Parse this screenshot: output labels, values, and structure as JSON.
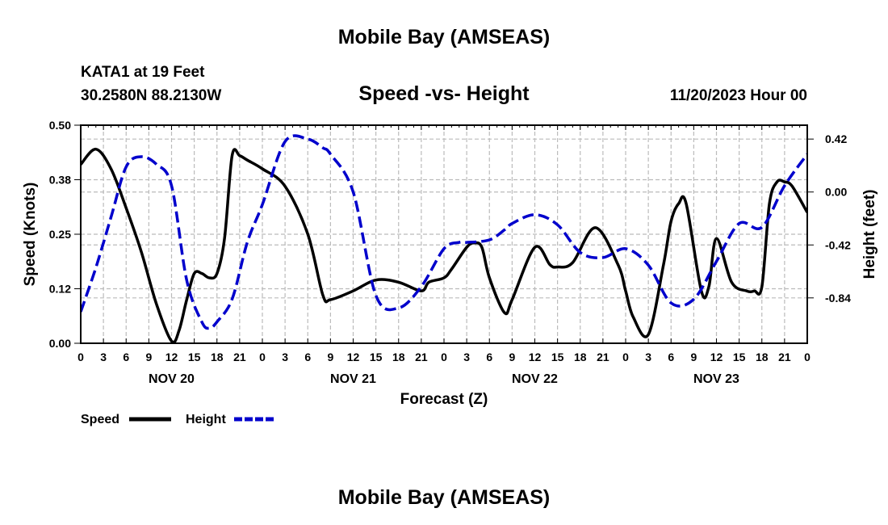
{
  "page": {
    "top_title": "Mobile Bay (AMSEAS)",
    "bottom_title": "Mobile Bay (AMSEAS)",
    "station": "KATA1 at 19 Feet",
    "coords": "30.2580N  88.2130W",
    "datetime": "11/20/2023 Hour 00"
  },
  "colors": {
    "speed": "#000000",
    "height": "#0000cc",
    "grid": "#bbbbbb"
  },
  "chart_data": {
    "type": "line",
    "title": "Speed -vs- Height",
    "xlabel": "Forecast (Z)",
    "ylabel_left": "Speed (Knots)",
    "ylabel_right": "Height (feet)",
    "x_unit": "forecast hour from 11/20/2023 00Z",
    "xlim": [
      0,
      96
    ],
    "ylim_left": [
      0,
      0.5
    ],
    "ylim_right": [
      -1.2,
      0.53
    ],
    "x_tick_values": [
      0,
      3,
      6,
      9,
      12,
      15,
      18,
      21,
      24,
      27,
      30,
      33,
      36,
      39,
      42,
      45,
      48,
      51,
      54,
      57,
      60,
      63,
      66,
      69,
      72,
      75,
      78,
      81,
      84,
      87,
      90,
      93,
      96
    ],
    "x_tick_labels": [
      "0",
      "3",
      "6",
      "9",
      "12",
      "15",
      "18",
      "21",
      "0",
      "3",
      "6",
      "9",
      "12",
      "15",
      "18",
      "21",
      "0",
      "3",
      "6",
      "9",
      "12",
      "15",
      "18",
      "21",
      "0",
      "3",
      "6",
      "9",
      "12",
      "15",
      "18",
      "21",
      "0"
    ],
    "day_labels": [
      {
        "label": "NOV 20",
        "x": 12
      },
      {
        "label": "NOV 21",
        "x": 36
      },
      {
        "label": "NOV 22",
        "x": 60
      },
      {
        "label": "NOV 23",
        "x": 84
      }
    ],
    "y_left_ticks": [
      {
        "value": 0.0,
        "label": "0.00"
      },
      {
        "value": 0.125,
        "label": "0.12"
      },
      {
        "value": 0.25,
        "label": "0.25"
      },
      {
        "value": 0.375,
        "label": "0.38"
      },
      {
        "value": 0.5,
        "label": "0.50"
      }
    ],
    "y_right_ticks": [
      {
        "value": 0.42,
        "label": "0.42"
      },
      {
        "value": 0.0,
        "label": "0.00"
      },
      {
        "value": -0.42,
        "label": "-0.42"
      },
      {
        "value": -0.84,
        "label": "-0.84"
      }
    ],
    "series": [
      {
        "name": "Speed",
        "axis": "left",
        "style": "solid",
        "x": [
          0,
          2,
          4,
          6,
          8,
          10,
          12,
          13,
          14,
          15,
          16,
          17,
          18,
          19,
          20,
          21,
          22,
          24,
          27,
          30,
          32,
          33,
          36,
          39,
          42,
          45,
          46,
          48,
          49,
          51,
          52,
          53,
          54,
          56,
          57,
          60,
          62,
          63,
          65,
          68,
          71,
          72,
          73,
          75,
          77,
          78,
          79,
          80,
          82,
          83,
          84,
          86,
          88,
          89,
          90,
          91,
          92,
          93,
          94,
          96
        ],
        "y": [
          0.41,
          0.445,
          0.4,
          0.31,
          0.21,
          0.09,
          0.005,
          0.03,
          0.1,
          0.16,
          0.16,
          0.15,
          0.16,
          0.24,
          0.43,
          0.43,
          0.42,
          0.4,
          0.36,
          0.25,
          0.11,
          0.1,
          0.12,
          0.145,
          0.14,
          0.12,
          0.14,
          0.15,
          0.17,
          0.22,
          0.23,
          0.22,
          0.15,
          0.07,
          0.1,
          0.22,
          0.18,
          0.175,
          0.185,
          0.265,
          0.18,
          0.12,
          0.06,
          0.02,
          0.18,
          0.28,
          0.32,
          0.32,
          0.12,
          0.13,
          0.24,
          0.14,
          0.12,
          0.12,
          0.13,
          0.32,
          0.37,
          0.37,
          0.36,
          0.3
        ]
      },
      {
        "name": "Height",
        "axis": "right",
        "style": "dashed",
        "x": [
          0,
          2,
          4,
          6,
          8,
          10,
          12,
          14,
          16,
          17,
          18,
          20,
          22,
          24,
          27,
          30,
          32,
          33,
          36,
          39,
          42,
          45,
          48,
          50,
          51,
          54,
          56,
          57,
          60,
          63,
          66,
          69,
          72,
          75,
          78,
          81,
          84,
          87,
          90,
          93,
          96
        ],
        "y": [
          -0.95,
          -0.6,
          -0.2,
          0.2,
          0.28,
          0.22,
          0.05,
          -0.7,
          -1.03,
          -1.08,
          -1.03,
          -0.85,
          -0.4,
          -0.1,
          0.4,
          0.42,
          0.35,
          0.3,
          0.0,
          -0.82,
          -0.92,
          -0.75,
          -0.45,
          -0.4,
          -0.4,
          -0.38,
          -0.3,
          -0.25,
          -0.18,
          -0.26,
          -0.48,
          -0.52,
          -0.45,
          -0.58,
          -0.88,
          -0.85,
          -0.55,
          -0.25,
          -0.28,
          0.05,
          0.3
        ]
      }
    ],
    "legend": [
      {
        "label": "Speed",
        "style": "solid"
      },
      {
        "label": "Height",
        "style": "dashed"
      }
    ]
  }
}
